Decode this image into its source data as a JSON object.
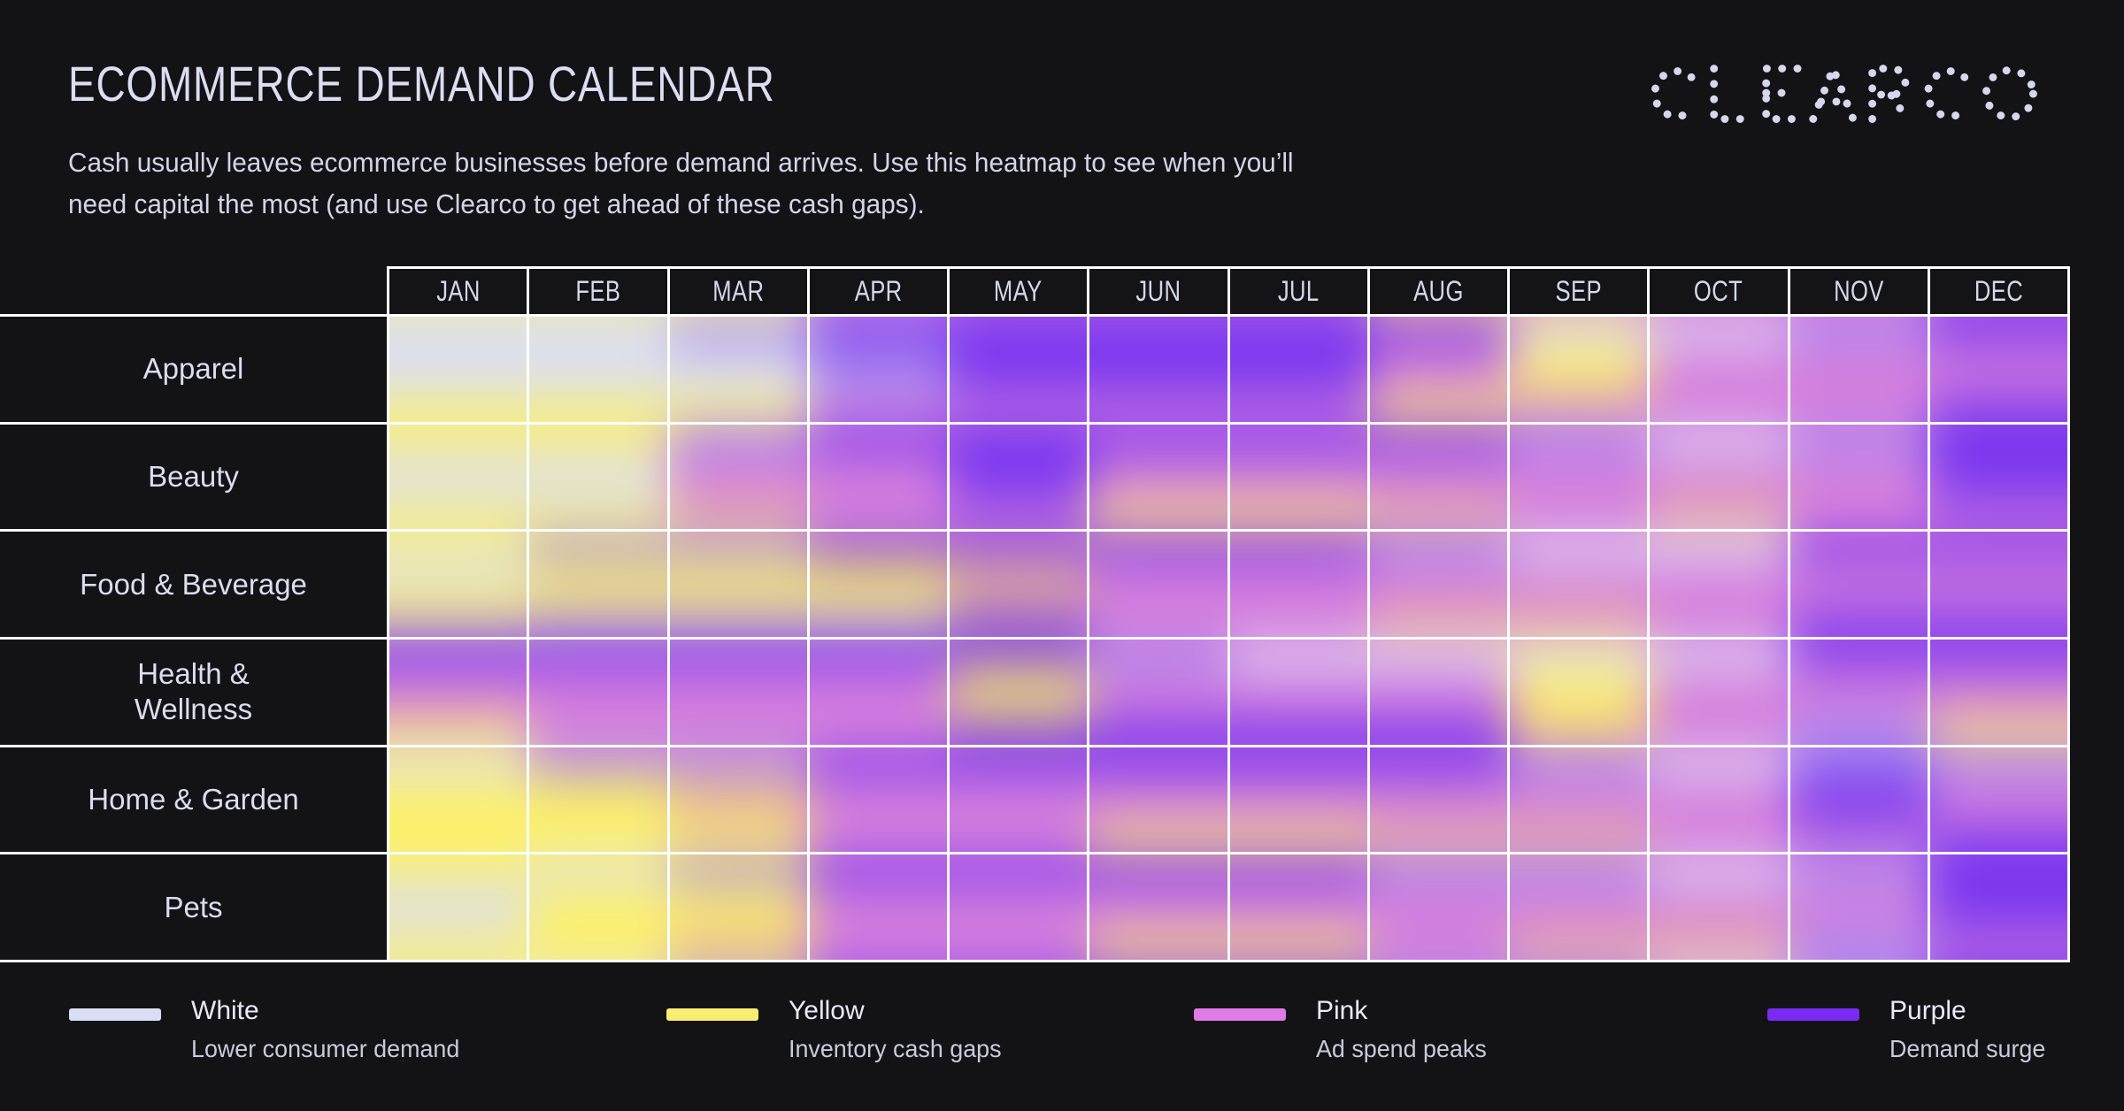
{
  "header": {
    "title": "ECOMMERCE DEMAND CALENDAR",
    "subtitle": "Cash usually leaves ecommerce businesses before demand arrives. Use this heatmap to see when you’ll\nneed capital the most (and use Clearco to get ahead of these cash gaps)."
  },
  "logo": {
    "text": "CLEARCO"
  },
  "chart_data": {
    "type": "heatmap",
    "title": "ECOMMERCE DEMAND CALENDAR",
    "x_labels": [
      "JAN",
      "FEB",
      "MAR",
      "APR",
      "MAY",
      "JUN",
      "JUL",
      "AUG",
      "SEP",
      "OCT",
      "NOV",
      "DEC"
    ],
    "y_labels": [
      "Apparel",
      "Beauty",
      "Food & Beverage",
      "Health &\nWellness",
      "Home & Garden",
      "Pets"
    ],
    "palette": {
      "W": "#dbdff6",
      "Y": "#fdf169",
      "P": "#d67fdd",
      "U": "#7a36f0",
      "L": "#a689f2",
      "K": "#eebb92"
    },
    "palette_meaning": {
      "W": "White — lower consumer demand",
      "Y": "Yellow — inventory cash gaps",
      "P": "Pink — ad spend peaks",
      "U": "Purple — demand surge",
      "L": "light purple blend",
      "K": "peach (pink/yellow blend)"
    },
    "rows": [
      {
        "label": "Apparel",
        "cells": [
          [
            "W",
            "W",
            "Y"
          ],
          [
            "W",
            "W",
            "Y"
          ],
          [
            "L",
            "W",
            "Y"
          ],
          [
            "U",
            "L",
            "P"
          ],
          [
            "U",
            "U",
            "P"
          ],
          [
            "U",
            "U",
            "P"
          ],
          [
            "U",
            "U",
            "P"
          ],
          [
            "U",
            "P",
            "Y"
          ],
          [
            "W",
            "Y",
            "P"
          ],
          [
            "W",
            "P",
            "P"
          ],
          [
            "L",
            "P",
            "P"
          ],
          [
            "U",
            "P",
            "U"
          ]
        ]
      },
      {
        "label": "Beauty",
        "cells": [
          [
            "Y",
            "W",
            "Y"
          ],
          [
            "Y",
            "W",
            "Y"
          ],
          [
            "L",
            "P",
            "K"
          ],
          [
            "U",
            "P",
            "P"
          ],
          [
            "U",
            "U",
            "P"
          ],
          [
            "U",
            "P",
            "Y"
          ],
          [
            "U",
            "P",
            "Y"
          ],
          [
            "U",
            "P",
            "K"
          ],
          [
            "L",
            "P",
            "P"
          ],
          [
            "W",
            "P",
            "K"
          ],
          [
            "L",
            "P",
            "P"
          ],
          [
            "U",
            "U",
            "P"
          ]
        ]
      },
      {
        "label": "Food & Beverage",
        "cells": [
          [
            "Y",
            "W",
            "Y",
            "L"
          ],
          [
            "L",
            "Y",
            "L"
          ],
          [
            "L",
            "Y",
            "L"
          ],
          [
            "U",
            "Y",
            "L"
          ],
          [
            "U",
            "K",
            "U"
          ],
          [
            "U",
            "P",
            "P"
          ],
          [
            "U",
            "P",
            "P"
          ],
          [
            "L",
            "P",
            "K"
          ],
          [
            "W",
            "P",
            "K"
          ],
          [
            "W",
            "P",
            "P"
          ],
          [
            "U",
            "P",
            "U"
          ],
          [
            "U",
            "P",
            "U"
          ]
        ]
      },
      {
        "label": "Health &\nWellness",
        "cells": [
          [
            "U",
            "P",
            "Y"
          ],
          [
            "U",
            "P",
            "P"
          ],
          [
            "U",
            "P",
            "P"
          ],
          [
            "U",
            "P",
            "P"
          ],
          [
            "U",
            "Y",
            "U"
          ],
          [
            "L",
            "P",
            "U"
          ],
          [
            "W",
            "P",
            "U"
          ],
          [
            "W",
            "P",
            "U"
          ],
          [
            "W",
            "Y",
            "K"
          ],
          [
            "W",
            "P",
            "P"
          ],
          [
            "U",
            "P",
            "L"
          ],
          [
            "U",
            "P",
            "Y"
          ]
        ]
      },
      {
        "label": "Home & Garden",
        "cells": [
          [
            "W",
            "Y",
            "Y"
          ],
          [
            "L",
            "Y",
            "Y"
          ],
          [
            "L",
            "K",
            "Y"
          ],
          [
            "U",
            "P",
            "P"
          ],
          [
            "U",
            "P",
            "P"
          ],
          [
            "U",
            "P",
            "Y"
          ],
          [
            "U",
            "P",
            "Y"
          ],
          [
            "U",
            "P",
            "K"
          ],
          [
            "L",
            "P",
            "K"
          ],
          [
            "W",
            "P",
            "P"
          ],
          [
            "L",
            "U",
            "P"
          ],
          [
            "L",
            "P",
            "U"
          ]
        ]
      },
      {
        "label": "Pets",
        "cells": [
          [
            "Y",
            "W",
            "Y"
          ],
          [
            "W",
            "Y",
            "Y"
          ],
          [
            "L",
            "Y",
            "K"
          ],
          [
            "U",
            "P",
            "P"
          ],
          [
            "U",
            "P",
            "P"
          ],
          [
            "U",
            "P",
            "Y"
          ],
          [
            "U",
            "P",
            "Y"
          ],
          [
            "L",
            "P",
            "P"
          ],
          [
            "L",
            "P",
            "K"
          ],
          [
            "W",
            "P",
            "K"
          ],
          [
            "L",
            "P",
            "L"
          ],
          [
            "U",
            "U",
            "P"
          ]
        ]
      }
    ]
  },
  "legend": {
    "items": [
      {
        "name": "White",
        "desc": "Lower consumer demand",
        "color": "#d9def5"
      },
      {
        "name": "Yellow",
        "desc": "Inventory cash gaps",
        "color": "#f8ee71"
      },
      {
        "name": "Pink",
        "desc": "Ad spend peaks",
        "color": "#df7ae6"
      },
      {
        "name": "Purple",
        "desc": "Demand surge",
        "color": "#7a2af5"
      }
    ]
  }
}
